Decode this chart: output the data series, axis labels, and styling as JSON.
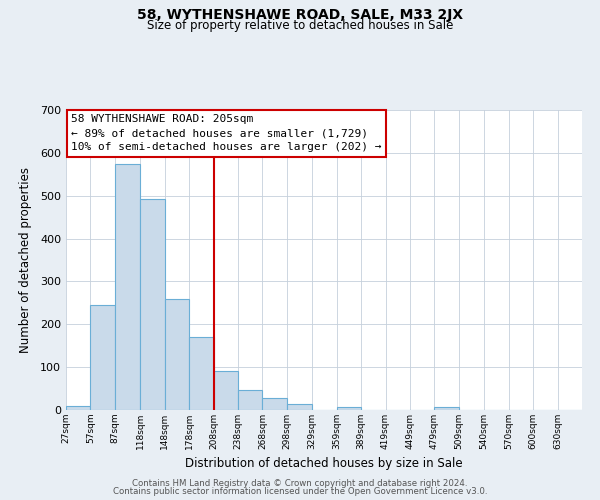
{
  "title": "58, WYTHENSHAWE ROAD, SALE, M33 2JX",
  "subtitle": "Size of property relative to detached houses in Sale",
  "xlabel": "Distribution of detached houses by size in Sale",
  "ylabel": "Number of detached properties",
  "bin_labels": [
    "27sqm",
    "57sqm",
    "87sqm",
    "118sqm",
    "148sqm",
    "178sqm",
    "208sqm",
    "238sqm",
    "268sqm",
    "298sqm",
    "329sqm",
    "359sqm",
    "389sqm",
    "419sqm",
    "449sqm",
    "479sqm",
    "509sqm",
    "540sqm",
    "570sqm",
    "600sqm",
    "630sqm"
  ],
  "bin_left_edges": [
    27,
    57,
    87,
    118,
    148,
    178,
    208,
    238,
    268,
    298,
    329,
    359,
    389,
    419,
    449,
    479,
    509,
    540,
    570,
    600,
    630
  ],
  "bin_widths": [
    30,
    30,
    31,
    30,
    30,
    30,
    30,
    30,
    30,
    31,
    30,
    30,
    30,
    30,
    30,
    30,
    31,
    30,
    30,
    30,
    30
  ],
  "bar_heights": [
    10,
    246,
    575,
    492,
    260,
    171,
    90,
    47,
    27,
    13,
    0,
    7,
    0,
    0,
    0,
    7,
    0,
    0,
    0,
    0,
    0
  ],
  "bar_color": "#c9daea",
  "bar_edgecolor": "#6aaed6",
  "vline_x": 208,
  "vline_color": "#cc0000",
  "annotation_lines": [
    "58 WYTHENSHAWE ROAD: 205sqm",
    "← 89% of detached houses are smaller (1,729)",
    "10% of semi-detached houses are larger (202) →"
  ],
  "ylim": [
    0,
    700
  ],
  "yticks": [
    0,
    100,
    200,
    300,
    400,
    500,
    600,
    700
  ],
  "footer_line1": "Contains HM Land Registry data © Crown copyright and database right 2024.",
  "footer_line2": "Contains public sector information licensed under the Open Government Licence v3.0.",
  "background_color": "#e8eef4",
  "plot_background": "#ffffff",
  "grid_color": "#c5d0dc"
}
